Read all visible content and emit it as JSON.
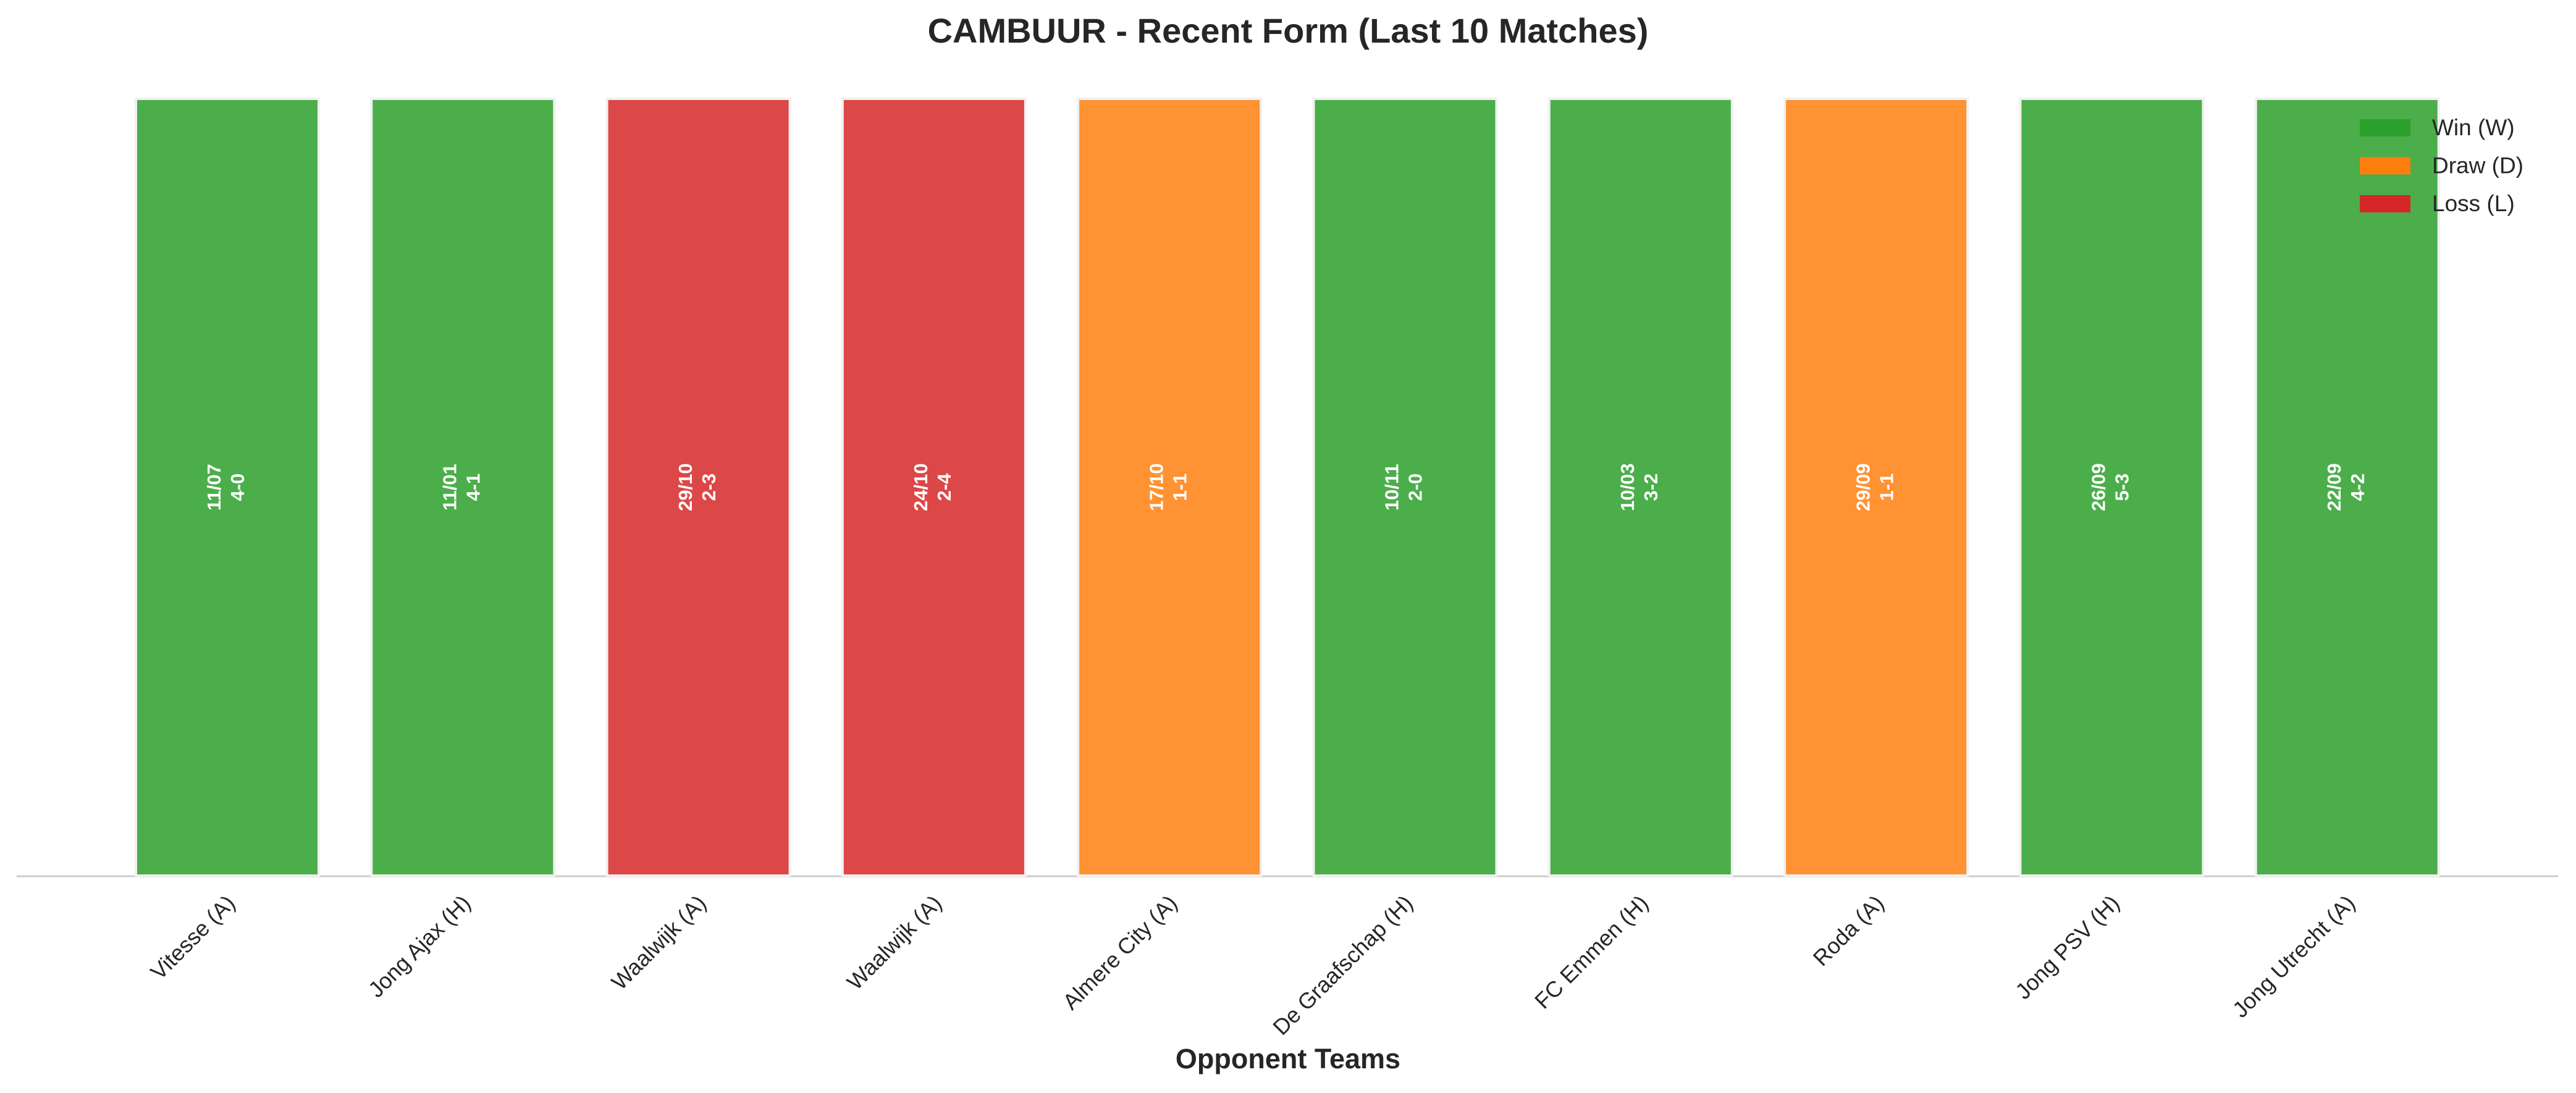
{
  "chart_data": {
    "type": "bar",
    "title": "CAMBUUR - Recent Form (Last 10 Matches)",
    "x_label": "Opponent Teams",
    "categories": [
      "Vitesse (A)",
      "Jong Ajax (H)",
      "Waalwijk (A)",
      "Waalwijk (A)",
      "Almere City (A)",
      "De Graafschap (H)",
      "FC Emmen (H)",
      "Roda (A)",
      "Jong PSV (H)",
      "Jong Utrecht (A)"
    ],
    "values": [
      1,
      1,
      1,
      1,
      1,
      1,
      1,
      1,
      1,
      1
    ],
    "dates": [
      "11/07",
      "11/01",
      "29/10",
      "24/10",
      "17/10",
      "10/11",
      "10/03",
      "29/09",
      "26/09",
      "22/09"
    ],
    "scores": [
      "4-0",
      "4-1",
      "2-3",
      "2-4",
      "1-1",
      "2-0",
      "3-2",
      "1-1",
      "5-3",
      "4-2"
    ],
    "colors": [
      "#2ca02c",
      "#2ca02c",
      "#d62728",
      "#d62728",
      "#ff7f0e",
      "#2ca02c",
      "#2ca02c",
      "#ff7f0e",
      "#2ca02c",
      "#2ca02c"
    ],
    "ylim": [
      0,
      1
    ],
    "legend": {
      "position": "upper right",
      "entries": [
        {
          "name": "Win (W)",
          "color": "#2ca02c"
        },
        {
          "name": "Draw (D)",
          "color": "#ff7f0e"
        },
        {
          "name": "Loss (L)",
          "color": "#d62728"
        }
      ]
    }
  }
}
